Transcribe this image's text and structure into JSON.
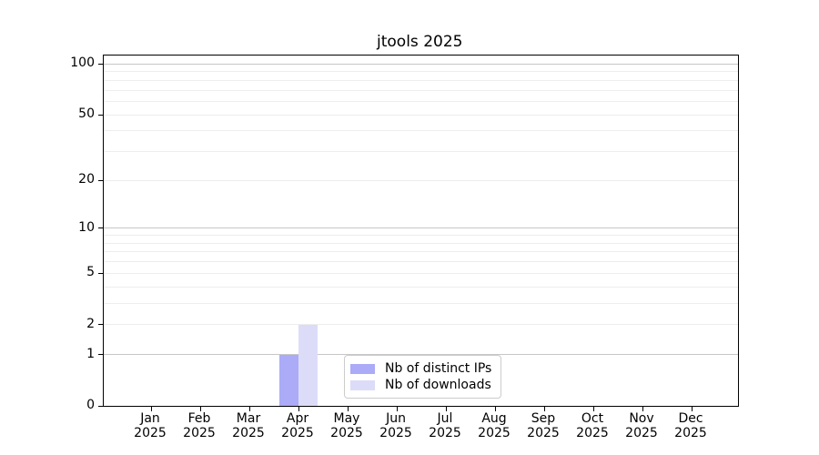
{
  "title": "jtools 2025",
  "colors": {
    "distinct_ips": "#ababf8",
    "downloads": "#dcdcf9",
    "grid_major": "rgba(0,0,0,0.22)",
    "grid_minor": "rgba(0,0,0,0.07)",
    "axis": "#000000",
    "legend_border": "#cccccc",
    "background": "#ffffff",
    "text": "#000000"
  },
  "chart_data": {
    "type": "bar",
    "title": "jtools 2025",
    "months": [
      "Jan",
      "Feb",
      "Mar",
      "Apr",
      "May",
      "Jun",
      "Jul",
      "Aug",
      "Sep",
      "Oct",
      "Nov",
      "Dec"
    ],
    "year": "2025",
    "categories": [
      "Jan 2025",
      "Feb 2025",
      "Mar 2025",
      "Apr 2025",
      "May 2025",
      "Jun 2025",
      "Jul 2025",
      "Aug 2025",
      "Sep 2025",
      "Oct 2025",
      "Nov 2025",
      "Dec 2025"
    ],
    "series": [
      {
        "name": "Nb of distinct IPs",
        "color_key": "distinct_ips",
        "values": [
          0,
          0,
          0,
          1,
          0,
          0,
          0,
          0,
          0,
          0,
          0,
          0
        ]
      },
      {
        "name": "Nb of downloads",
        "color_key": "downloads",
        "values": [
          0,
          0,
          0,
          2,
          0,
          0,
          0,
          0,
          0,
          0,
          0,
          0
        ]
      }
    ],
    "xlabel": "",
    "ylabel": "",
    "yscale": "log1p",
    "y_ticks": [
      0,
      1,
      2,
      5,
      10,
      20,
      50,
      100
    ],
    "y_major_gridlines": [
      1,
      10,
      100
    ],
    "y_minor_gridlines": [
      2,
      3,
      4,
      5,
      6,
      7,
      8,
      9,
      20,
      30,
      40,
      50,
      60,
      70,
      80,
      90
    ],
    "ylim": [
      0,
      113
    ],
    "grid": true,
    "legend_position": "lower center"
  }
}
